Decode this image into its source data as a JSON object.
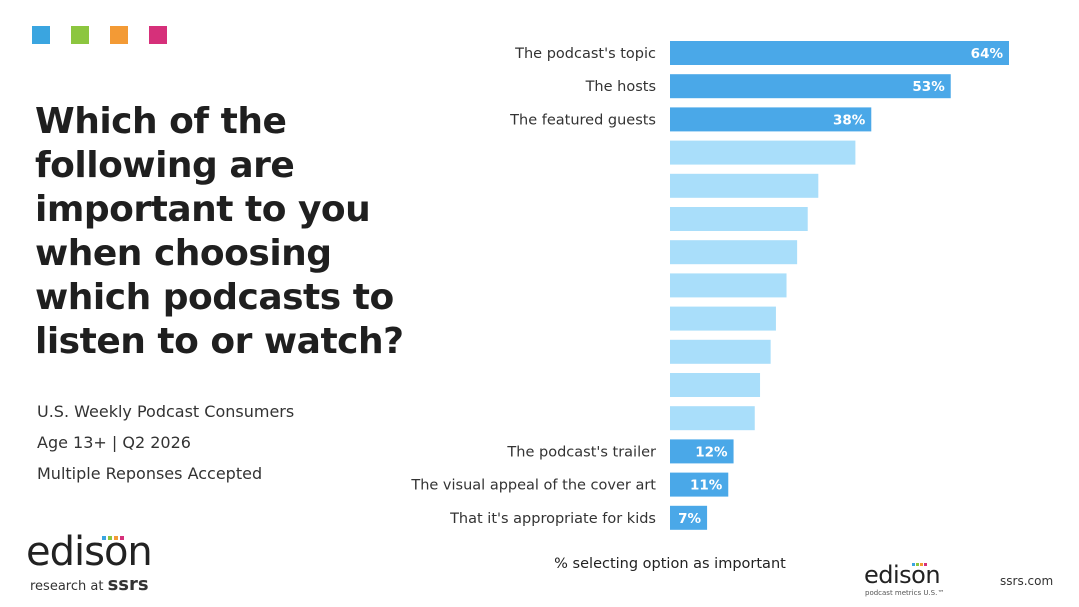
{
  "accent_colors": [
    "#3aa5e0",
    "#8cc63f",
    "#f39a35",
    "#d6307a"
  ],
  "question": "Which of the following are important to you when choosing which podcasts to listen to or watch?",
  "sample": {
    "line1": "U.S. Weekly Podcast Consumers",
    "line2": "Age 13+ | Q2 2026",
    "line3": "Multiple Reponses Accepted"
  },
  "logo_left": {
    "word": "edison",
    "sub_prefix": "research at",
    "sub_brand": "ssrs"
  },
  "logo_right": {
    "word": "edison",
    "sub": "podcast metrics U.S.™"
  },
  "site": "ssrs.com",
  "chart_data": {
    "type": "bar",
    "orientation": "horizontal",
    "xlabel": "% selecting option as important",
    "xlim": [
      0,
      64
    ],
    "grid": false,
    "colors": {
      "highlight": "#4aa8e8",
      "muted": "#a9defa"
    },
    "bars": [
      {
        "label": "The podcast's topic",
        "value": 64,
        "value_label": "64%",
        "highlight": true
      },
      {
        "label": "The hosts",
        "value": 53,
        "value_label": "53%",
        "highlight": true
      },
      {
        "label": "The featured guests",
        "value": 38,
        "value_label": "38%",
        "highlight": true
      },
      {
        "label": "",
        "value": 35,
        "value_label": "",
        "highlight": false
      },
      {
        "label": "",
        "value": 28,
        "value_label": "",
        "highlight": false
      },
      {
        "label": "",
        "value": 26,
        "value_label": "",
        "highlight": false
      },
      {
        "label": "",
        "value": 24,
        "value_label": "",
        "highlight": false
      },
      {
        "label": "",
        "value": 22,
        "value_label": "",
        "highlight": false
      },
      {
        "label": "",
        "value": 20,
        "value_label": "",
        "highlight": false
      },
      {
        "label": "",
        "value": 19,
        "value_label": "",
        "highlight": false
      },
      {
        "label": "",
        "value": 17,
        "value_label": "",
        "highlight": false
      },
      {
        "label": "",
        "value": 16,
        "value_label": "",
        "highlight": false
      },
      {
        "label": "The podcast's trailer",
        "value": 12,
        "value_label": "12%",
        "highlight": true
      },
      {
        "label": "The visual appeal of the cover art",
        "value": 11,
        "value_label": "11%",
        "highlight": true
      },
      {
        "label": "That it's appropriate for kids",
        "value": 7,
        "value_label": "7%",
        "highlight": true
      }
    ]
  }
}
